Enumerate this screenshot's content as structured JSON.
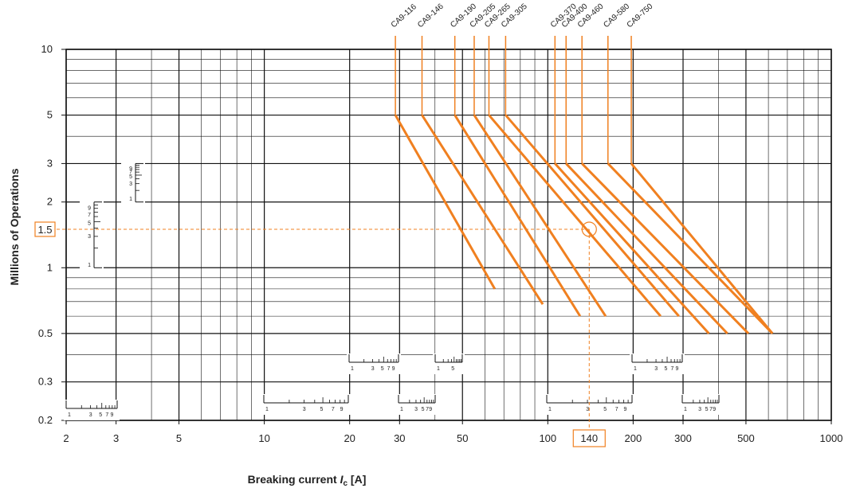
{
  "chart_data": {
    "type": "line",
    "xlabel": "Breaking current",
    "xlabel_symbol": "I",
    "xlabel_sub": "c",
    "xlabel_unit": "[A]",
    "ylabel": "Millions of Operations",
    "x_scale": "log",
    "y_scale": "log",
    "xlim": [
      2,
      1000
    ],
    "ylim": [
      0.2,
      10
    ],
    "x_ticks": [
      2,
      3,
      5,
      10,
      20,
      30,
      50,
      100,
      200,
      300,
      500,
      1000
    ],
    "y_ticks": [
      0.2,
      0.3,
      0.5,
      1,
      2,
      3,
      5,
      10
    ],
    "line_color": "#f08020",
    "grid": true,
    "series": [
      {
        "name": "CA9-116",
        "x": [
          29,
          65
        ],
        "y": [
          5,
          0.8
        ]
      },
      {
        "name": "CA9-146",
        "x": [
          36,
          96
        ],
        "y": [
          5,
          0.68
        ]
      },
      {
        "name": "CA9-190",
        "x": [
          47,
          130
        ],
        "y": [
          5,
          0.6
        ]
      },
      {
        "name": "CA9-205",
        "x": [
          55,
          160
        ],
        "y": [
          5,
          0.6
        ]
      },
      {
        "name": "CA9-265",
        "x": [
          62,
          250
        ],
        "y": [
          5,
          0.6
        ]
      },
      {
        "name": "CA9-305",
        "x": [
          71,
          290
        ],
        "y": [
          5,
          0.6
        ]
      },
      {
        "name": "CA9-370",
        "x": [
          106,
          370
        ],
        "y": [
          3,
          0.5
        ]
      },
      {
        "name": "CA9-400",
        "x": [
          116,
          430
        ],
        "y": [
          3,
          0.5
        ]
      },
      {
        "name": "CA9-460",
        "x": [
          132,
          510
        ],
        "y": [
          3,
          0.5
        ]
      },
      {
        "name": "CA9-580",
        "x": [
          163,
          620
        ],
        "y": [
          3,
          0.5
        ]
      },
      {
        "name": "CA9-750",
        "x": [
          197,
          620
        ],
        "y": [
          3,
          0.5
        ]
      }
    ],
    "annotations": {
      "highlight_y": 1.5,
      "highlight_y_label": "1.5",
      "highlight_x": 140,
      "highlight_x_label": "140"
    },
    "scale_insets": {
      "digits_1_9": [
        "1",
        "3",
        "5",
        "7",
        "9"
      ],
      "digits_1_5": [
        "1",
        "5"
      ],
      "digits_1_3_5_7_9_compact": [
        "1",
        "3",
        "5",
        "7",
        "9"
      ]
    }
  }
}
